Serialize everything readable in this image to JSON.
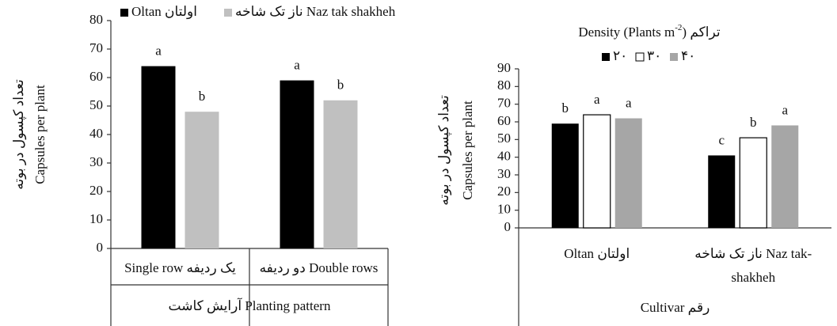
{
  "chart_data": [
    {
      "type": "bar",
      "y_label": [
        "تعداد کپسول در بوته",
        "Capsules per plant"
      ],
      "x_label": "آرایش کاشت Planting pattern",
      "categories": [
        [
          "Single row یک ردیفه"
        ],
        [
          "دو ردیفه Double rows"
        ]
      ],
      "series": [
        {
          "name": "Oltan اولتان",
          "color": "#000000",
          "values": [
            64,
            59
          ],
          "letters": [
            "a",
            "a"
          ]
        },
        {
          "name": "ناز تک شاخه Naz tak shakheh",
          "color": "#c0c0c0",
          "values": [
            48,
            52
          ],
          "letters": [
            "b",
            "b"
          ]
        }
      ],
      "ylim": [
        0,
        80
      ],
      "yticks": [
        0,
        10,
        20,
        30,
        40,
        50,
        60,
        70,
        80
      ]
    },
    {
      "type": "bar",
      "title": "Density (Plants m",
      "title_sup": "-2",
      "title_end": ") تراکم",
      "y_label": [
        "تعداد کپسول در بوته",
        "Capsules per plant"
      ],
      "x_label": "Cultivar رقم",
      "categories": [
        [
          "Oltan اولتان"
        ],
        [
          "ناز تک شاخه Naz tak-",
          "shakheh"
        ]
      ],
      "series": [
        {
          "name": "۲۰",
          "color": "#000000",
          "values": [
            59,
            41
          ],
          "letters": [
            "b",
            "c"
          ]
        },
        {
          "name": "۳۰",
          "color": "#ffffff",
          "values": [
            64,
            51
          ],
          "letters": [
            "a",
            "b"
          ]
        },
        {
          "name": "۴۰",
          "color": "#a6a6a6",
          "values": [
            62,
            58
          ],
          "letters": [
            "a",
            "a"
          ]
        }
      ],
      "ylim": [
        0,
        90
      ],
      "yticks": [
        0,
        10,
        20,
        30,
        40,
        50,
        60,
        70,
        80,
        90
      ]
    }
  ]
}
